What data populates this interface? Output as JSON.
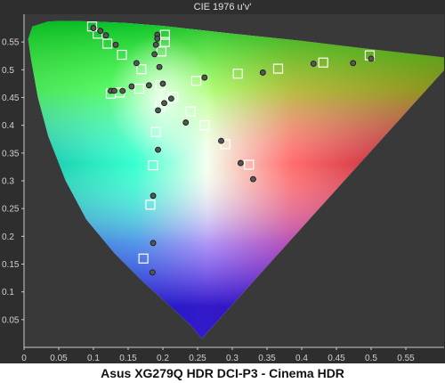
{
  "title": "CIE 1976 u'v'",
  "caption": "Asus XG279Q HDR DCI-P3 - Cinema HDR",
  "chart_data": {
    "type": "scatter",
    "title": "CIE 1976 u'v'",
    "xlabel": "",
    "ylabel": "",
    "xlim": [
      0,
      0.6
    ],
    "ylim": [
      0,
      0.6
    ],
    "grid": false,
    "x_ticks": [
      "0",
      "0.05",
      "0.1",
      "0.15",
      "0.2",
      "0.25",
      "0.3",
      "0.35",
      "0.4",
      "0.45",
      "0.5",
      "0.55"
    ],
    "y_ticks": [
      "0.05",
      "0.1",
      "0.15",
      "0.2",
      "0.25",
      "0.3",
      "0.35",
      "0.4",
      "0.45",
      "0.5",
      "0.55"
    ],
    "series": [
      {
        "marker": "square",
        "points": [
          [
            0.098,
            0.578
          ],
          [
            0.106,
            0.565
          ],
          [
            0.12,
            0.547
          ],
          [
            0.141,
            0.527
          ],
          [
            0.169,
            0.501
          ],
          [
            0.203,
            0.563
          ],
          [
            0.203,
            0.55
          ],
          [
            0.198,
            0.533
          ],
          [
            0.196,
            0.472
          ],
          [
            0.196,
            0.433
          ],
          [
            0.19,
            0.388
          ],
          [
            0.186,
            0.328
          ],
          [
            0.182,
            0.257
          ],
          [
            0.172,
            0.16
          ],
          [
            0.125,
            0.457
          ],
          [
            0.138,
            0.459
          ],
          [
            0.166,
            0.466
          ],
          [
            0.215,
            0.451
          ],
          [
            0.24,
            0.425
          ],
          [
            0.26,
            0.4
          ],
          [
            0.29,
            0.366
          ],
          [
            0.324,
            0.329
          ],
          [
            0.248,
            0.48
          ],
          [
            0.308,
            0.493
          ],
          [
            0.366,
            0.502
          ],
          [
            0.431,
            0.513
          ],
          [
            0.498,
            0.526
          ]
        ]
      },
      {
        "marker": "circle",
        "points": [
          [
            0.1,
            0.575
          ],
          [
            0.11,
            0.57
          ],
          [
            0.118,
            0.562
          ],
          [
            0.132,
            0.545
          ],
          [
            0.162,
            0.512
          ],
          [
            0.192,
            0.563
          ],
          [
            0.192,
            0.556
          ],
          [
            0.19,
            0.545
          ],
          [
            0.188,
            0.528
          ],
          [
            0.195,
            0.505
          ],
          [
            0.2,
            0.475
          ],
          [
            0.202,
            0.44
          ],
          [
            0.193,
            0.427
          ],
          [
            0.193,
            0.356
          ],
          [
            0.186,
            0.273
          ],
          [
            0.186,
            0.188
          ],
          [
            0.185,
            0.135
          ],
          [
            0.125,
            0.462
          ],
          [
            0.13,
            0.462
          ],
          [
            0.142,
            0.462
          ],
          [
            0.155,
            0.47
          ],
          [
            0.18,
            0.472
          ],
          [
            0.212,
            0.448
          ],
          [
            0.233,
            0.405
          ],
          [
            0.26,
            0.486
          ],
          [
            0.284,
            0.372
          ],
          [
            0.312,
            0.332
          ],
          [
            0.33,
            0.303
          ],
          [
            0.344,
            0.495
          ],
          [
            0.417,
            0.511
          ],
          [
            0.474,
            0.512
          ],
          [
            0.5,
            0.52
          ]
        ]
      }
    ]
  }
}
